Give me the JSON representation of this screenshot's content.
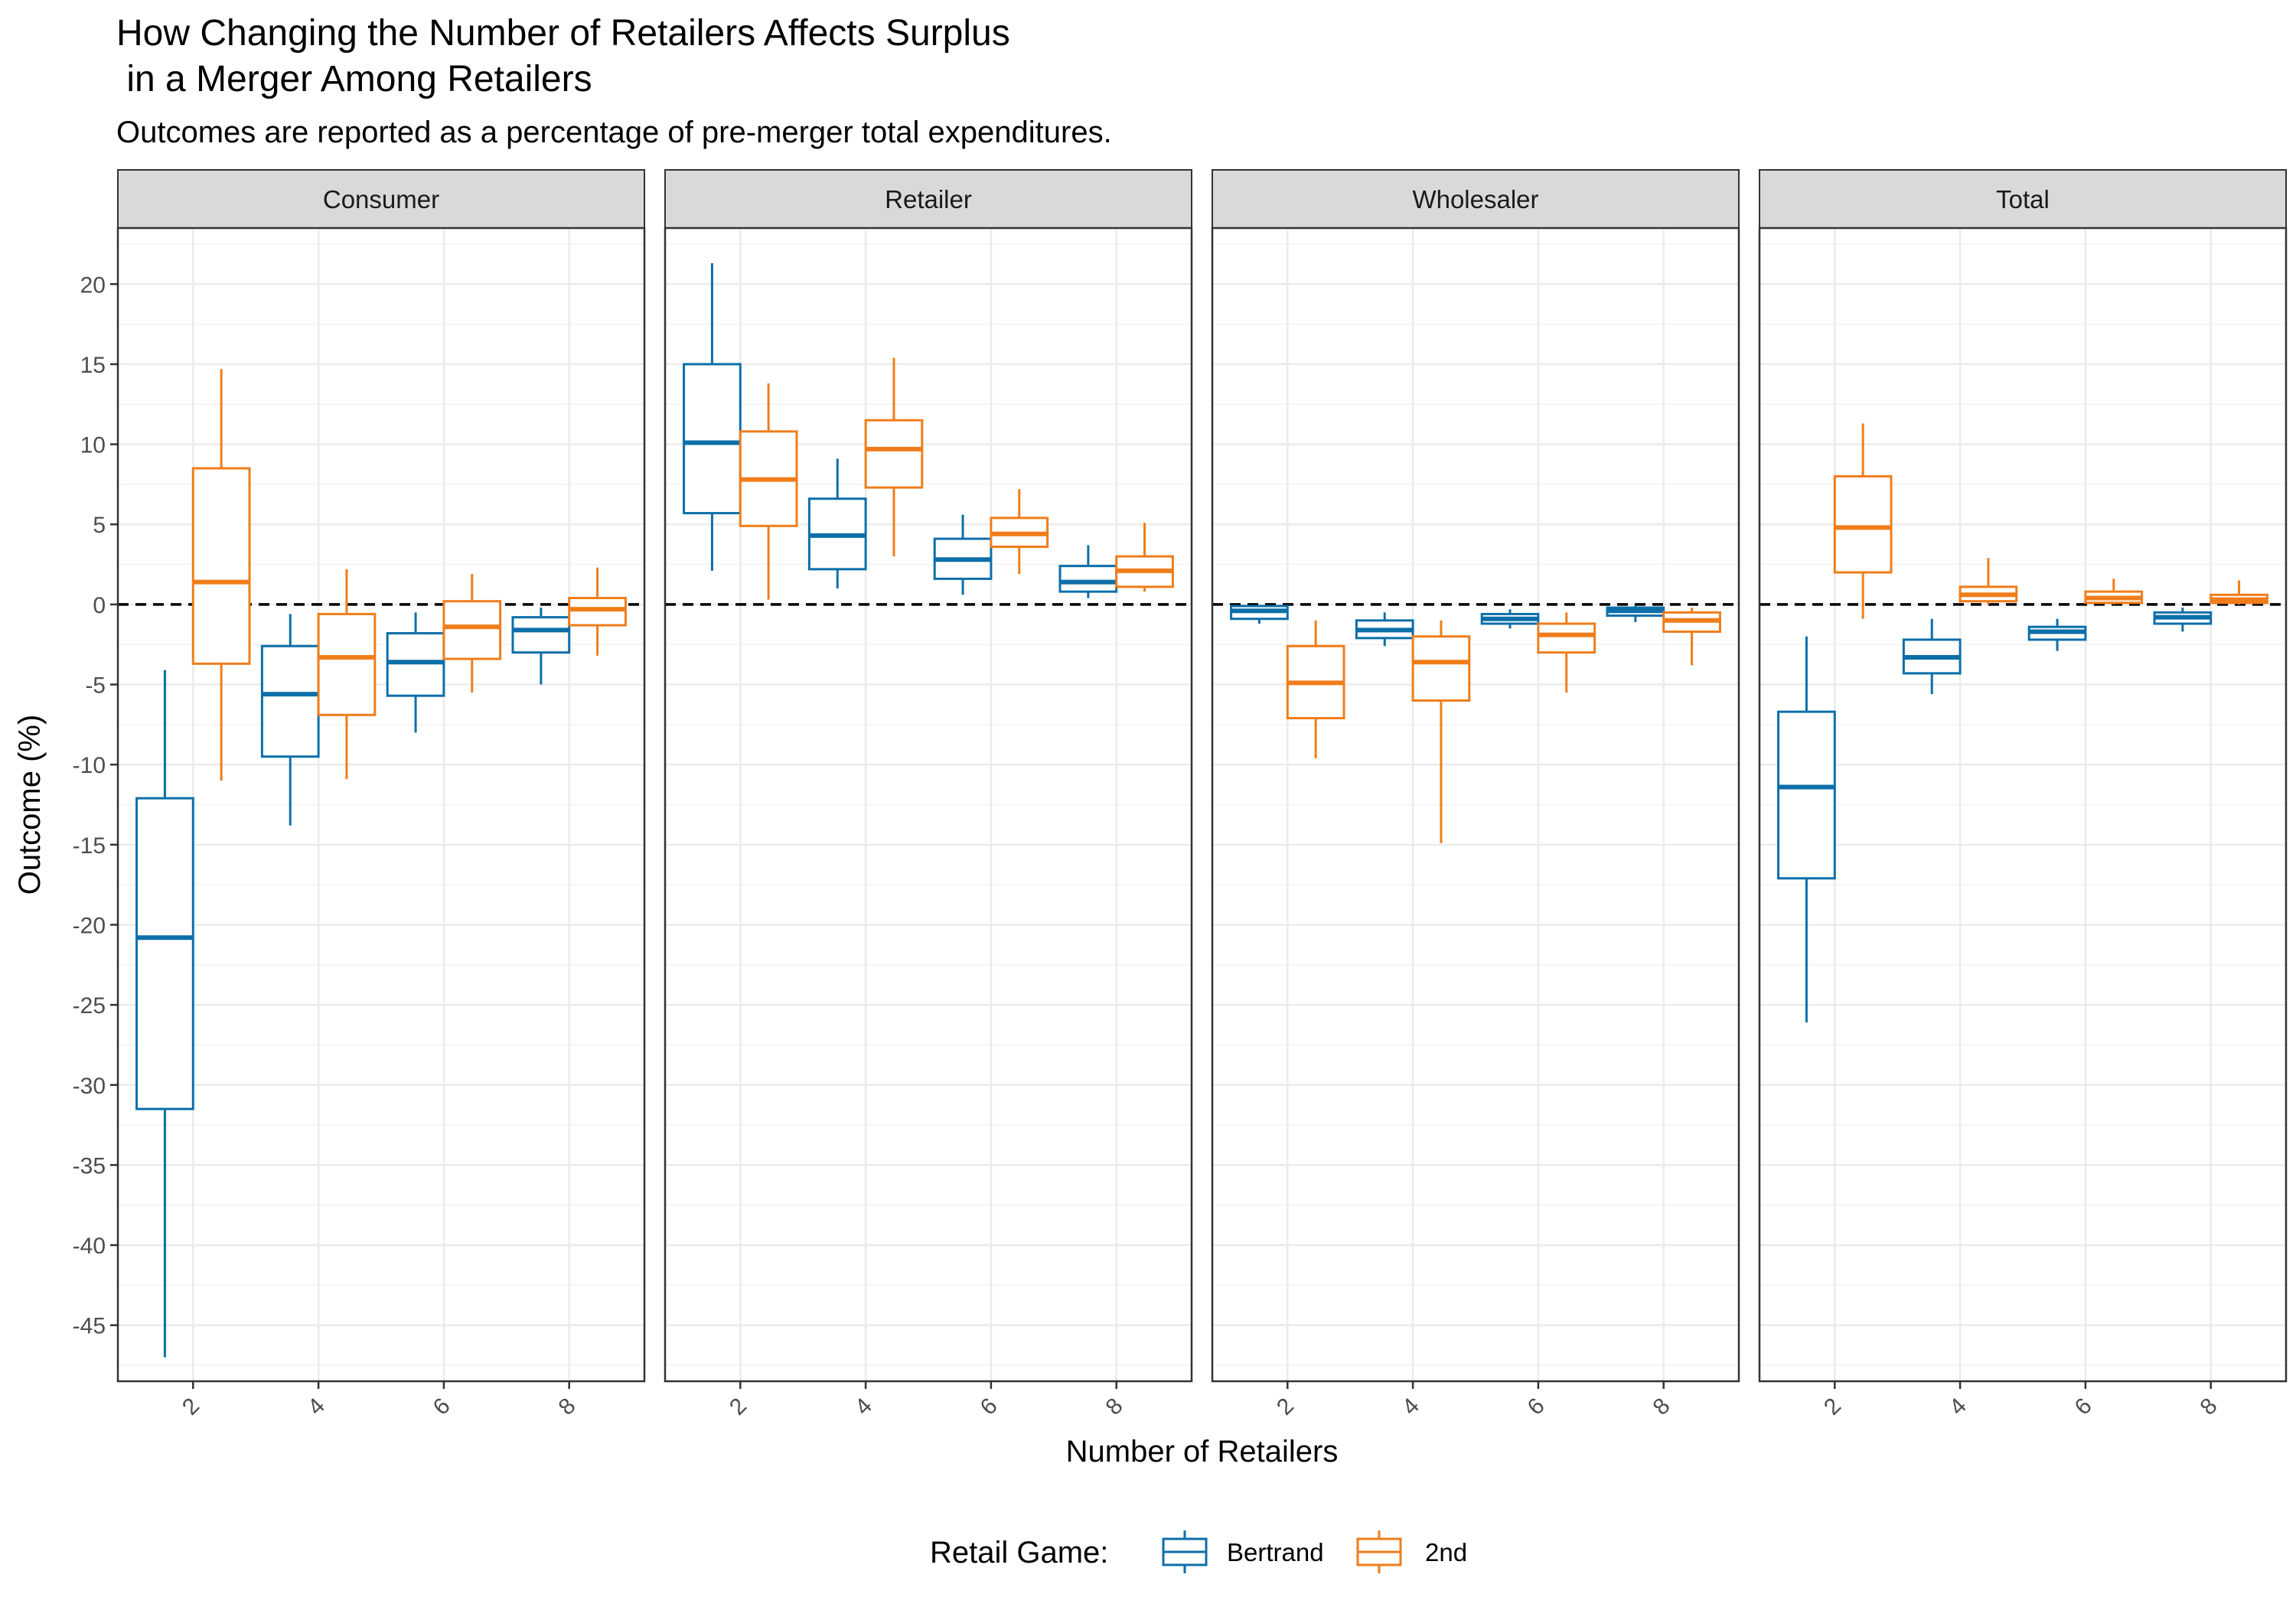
{
  "chart_data": {
    "type": "boxplot",
    "title": "How Changing the Number of Retailers Affects Surplus\n in a Merger Among Retailers",
    "subtitle": "Outcomes are reported as a percentage of pre-merger total expenditures.",
    "xlabel": "Number of Retailers",
    "ylabel": "Outcome (%)",
    "ylim": [
      -48.5,
      23.5
    ],
    "yticks": [
      20,
      15,
      10,
      5,
      0,
      -5,
      -10,
      -15,
      -20,
      -25,
      -30,
      -35,
      -40,
      -45
    ],
    "yticklabels": [
      "20",
      "15",
      "10",
      "5",
      "0",
      "-5",
      "-10",
      "-15",
      "-20",
      "-25",
      "-30",
      "-35",
      "-40",
      "-45"
    ],
    "xticks": [
      "2",
      "4",
      "6",
      "8"
    ],
    "reference_line": 0,
    "legend": {
      "title": "Retail Game:",
      "position": "bottom"
    },
    "series": [
      {
        "name": "Bertrand",
        "color": "#0C6FA9"
      },
      {
        "name": "2nd",
        "color": "#F07D1A"
      }
    ],
    "facets": [
      {
        "name": "Consumer",
        "boxes": {
          "Bertrand": [
            {
              "x": "2",
              "min": -47.0,
              "q1": -31.5,
              "median": -20.8,
              "q3": -12.1,
              "max": -4.1
            },
            {
              "x": "4",
              "min": -13.8,
              "q1": -9.5,
              "median": -5.6,
              "q3": -2.6,
              "max": -0.6
            },
            {
              "x": "6",
              "min": -8.0,
              "q1": -5.7,
              "median": -3.6,
              "q3": -1.8,
              "max": -0.5
            },
            {
              "x": "8",
              "min": -5.0,
              "q1": -3.0,
              "median": -1.6,
              "q3": -0.8,
              "max": -0.2
            }
          ],
          "2nd": [
            {
              "x": "2",
              "min": -11.0,
              "q1": -3.7,
              "median": 1.4,
              "q3": 8.5,
              "max": 14.7
            },
            {
              "x": "4",
              "min": -10.9,
              "q1": -6.9,
              "median": -3.3,
              "q3": -0.6,
              "max": 2.2
            },
            {
              "x": "6",
              "min": -5.5,
              "q1": -3.4,
              "median": -1.4,
              "q3": 0.2,
              "max": 1.9
            },
            {
              "x": "8",
              "min": -3.2,
              "q1": -1.3,
              "median": -0.3,
              "q3": 0.4,
              "max": 2.3
            }
          ]
        }
      },
      {
        "name": "Retailer",
        "boxes": {
          "Bertrand": [
            {
              "x": "2",
              "min": 2.1,
              "q1": 5.7,
              "median": 10.1,
              "q3": 15.0,
              "max": 21.3
            },
            {
              "x": "4",
              "min": 1.0,
              "q1": 2.2,
              "median": 4.3,
              "q3": 6.6,
              "max": 9.1
            },
            {
              "x": "6",
              "min": 0.6,
              "q1": 1.6,
              "median": 2.8,
              "q3": 4.1,
              "max": 5.6
            },
            {
              "x": "8",
              "min": 0.4,
              "q1": 0.8,
              "median": 1.4,
              "q3": 2.4,
              "max": 3.7
            }
          ],
          "2nd": [
            {
              "x": "2",
              "min": 0.3,
              "q1": 4.9,
              "median": 7.8,
              "q3": 10.8,
              "max": 13.8
            },
            {
              "x": "4",
              "min": 3.0,
              "q1": 7.3,
              "median": 9.7,
              "q3": 11.5,
              "max": 15.4
            },
            {
              "x": "6",
              "min": 1.9,
              "q1": 3.6,
              "median": 4.4,
              "q3": 5.4,
              "max": 7.2
            },
            {
              "x": "8",
              "min": 0.8,
              "q1": 1.1,
              "median": 2.1,
              "q3": 3.0,
              "max": 5.1
            }
          ]
        }
      },
      {
        "name": "Wholesaler",
        "boxes": {
          "Bertrand": [
            {
              "x": "2",
              "min": -1.2,
              "q1": -0.9,
              "median": -0.4,
              "q3": -0.1,
              "max": -0.05
            },
            {
              "x": "4",
              "min": -2.6,
              "q1": -2.1,
              "median": -1.6,
              "q3": -1.0,
              "max": -0.5
            },
            {
              "x": "6",
              "min": -1.5,
              "q1": -1.2,
              "median": -0.9,
              "q3": -0.6,
              "max": -0.3
            },
            {
              "x": "8",
              "min": -1.1,
              "q1": -0.7,
              "median": -0.4,
              "q3": -0.2,
              "max": -0.05
            }
          ],
          "2nd": [
            {
              "x": "2",
              "min": -9.6,
              "q1": -7.1,
              "median": -4.9,
              "q3": -2.6,
              "max": -1.0
            },
            {
              "x": "4",
              "min": -14.9,
              "q1": -6.0,
              "median": -3.6,
              "q3": -2.0,
              "max": -1.0
            },
            {
              "x": "6",
              "min": -5.5,
              "q1": -3.0,
              "median": -1.9,
              "q3": -1.2,
              "max": -0.5
            },
            {
              "x": "8",
              "min": -3.8,
              "q1": -1.7,
              "median": -1.0,
              "q3": -0.5,
              "max": -0.2
            }
          ]
        }
      },
      {
        "name": "Total",
        "boxes": {
          "Bertrand": [
            {
              "x": "2",
              "min": -26.1,
              "q1": -17.1,
              "median": -11.4,
              "q3": -6.7,
              "max": -2.0
            },
            {
              "x": "4",
              "min": -5.6,
              "q1": -4.3,
              "median": -3.3,
              "q3": -2.2,
              "max": -0.9
            },
            {
              "x": "6",
              "min": -2.9,
              "q1": -2.2,
              "median": -1.7,
              "q3": -1.4,
              "max": -0.9
            },
            {
              "x": "8",
              "min": -1.7,
              "q1": -1.2,
              "median": -0.8,
              "q3": -0.5,
              "max": -0.2
            }
          ],
          "2nd": [
            {
              "x": "2",
              "min": -0.9,
              "q1": 2.0,
              "median": 4.8,
              "q3": 8.0,
              "max": 11.3
            },
            {
              "x": "4",
              "min": 0.0,
              "q1": 0.2,
              "median": 0.6,
              "q3": 1.1,
              "max": 2.9
            },
            {
              "x": "6",
              "min": 0.0,
              "q1": 0.1,
              "median": 0.4,
              "q3": 0.8,
              "max": 1.6
            },
            {
              "x": "8",
              "min": 0.0,
              "q1": 0.1,
              "median": 0.3,
              "q3": 0.6,
              "max": 1.5
            }
          ]
        }
      }
    ]
  }
}
